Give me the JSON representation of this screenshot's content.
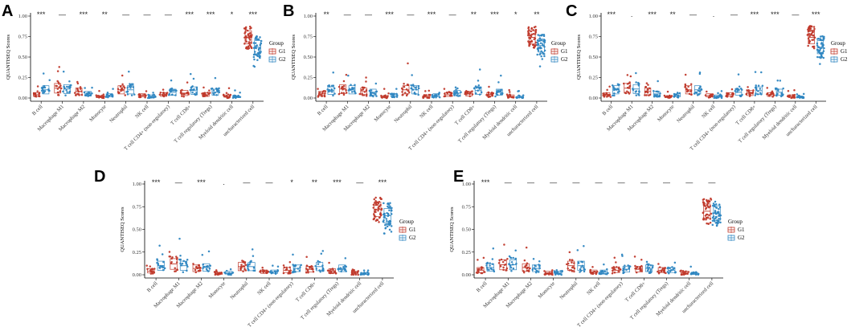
{
  "colors": {
    "G1": "#C0392B",
    "G2": "#2E86C1"
  },
  "chart_data": [
    {
      "panel": "A",
      "type": "scatter",
      "ylabel": "QUANTISEQ Scores",
      "ylim": [
        0,
        1
      ],
      "yticks": [
        "0.00",
        "0.25",
        "0.50",
        "0.75",
        "1.00"
      ],
      "categories": [
        "B cell",
        "Macrophage M1",
        "Macrophage M2",
        "Monocyte",
        "Neutrophil",
        "NK cell",
        "T cell CD4+ (non-regulatory)",
        "T cell CD8+",
        "T cell regulatory (Tregs)",
        "Myeloid dendritic cell",
        "uncharacterized cell"
      ],
      "significance": [
        "***",
        "—",
        "***",
        "**",
        "—",
        "—",
        "—",
        "***",
        "***",
        "*",
        "***"
      ],
      "series": [
        {
          "name": "G1",
          "medians": [
            0.04,
            0.12,
            0.08,
            0.01,
            0.1,
            0.03,
            0.04,
            0.06,
            0.04,
            0.02,
            0.74
          ]
        },
        {
          "name": "G2",
          "medians": [
            0.1,
            0.11,
            0.05,
            0.03,
            0.1,
            0.02,
            0.07,
            0.09,
            0.07,
            0.01,
            0.62
          ]
        }
      ],
      "legend": {
        "title": "Group",
        "entries": [
          "G1",
          "G2"
        ]
      }
    },
    {
      "panel": "B",
      "type": "scatter",
      "ylabel": "QUANTISEQ Scores",
      "ylim": [
        0,
        1
      ],
      "yticks": [
        "0.00",
        "0.25",
        "0.50",
        "0.75",
        "1.00"
      ],
      "categories": [
        "B cell",
        "Macrophage M1",
        "Macrophage M2",
        "Monocyte",
        "Neutrophil",
        "NK cell",
        "T cell CD4+ (non-regulatory)",
        "T cell CD8+",
        "T cell regulatory (Tregs)",
        "Myeloid dendritic cell",
        "uncharacterized cell"
      ],
      "significance": [
        "**",
        "—",
        "—",
        "***",
        "—",
        "***",
        "—",
        "**",
        "***",
        "*",
        "**"
      ],
      "series": [
        {
          "name": "G1",
          "medians": [
            0.05,
            0.11,
            0.08,
            0.01,
            0.1,
            0.02,
            0.04,
            0.05,
            0.04,
            0.02,
            0.74
          ]
        },
        {
          "name": "G2",
          "medians": [
            0.09,
            0.1,
            0.07,
            0.03,
            0.1,
            0.03,
            0.06,
            0.09,
            0.07,
            0.01,
            0.64
          ]
        }
      ],
      "legend": {
        "title": "Group",
        "entries": [
          "G1",
          "G2"
        ]
      }
    },
    {
      "panel": "C",
      "type": "scatter",
      "ylabel": "QUANTISEQ Scores",
      "ylim": [
        0,
        1
      ],
      "yticks": [
        "0.00",
        "0.25",
        "0.50",
        "0.75",
        "1.00"
      ],
      "categories": [
        "B cell",
        "Macrophage M1",
        "Macrophage M2",
        "Monocyte",
        "Neutrophil",
        "NK cell",
        "T cell CD4+ (non-regulatory)",
        "T cell CD8+",
        "T cell regulatory (Tregs)",
        "Myeloid dendritic cell",
        "uncharacterized cell"
      ],
      "significance": [
        "***",
        ".",
        "***",
        "**",
        "—",
        ".",
        "—",
        "***",
        "***",
        "—",
        "***"
      ],
      "series": [
        {
          "name": "G1",
          "medians": [
            0.04,
            0.12,
            0.08,
            0.01,
            0.1,
            0.03,
            0.04,
            0.06,
            0.04,
            0.02,
            0.74
          ]
        },
        {
          "name": "G2",
          "medians": [
            0.1,
            0.11,
            0.05,
            0.03,
            0.1,
            0.02,
            0.07,
            0.09,
            0.07,
            0.01,
            0.62
          ]
        }
      ],
      "legend": {
        "title": "Group",
        "entries": [
          "G1",
          "G2"
        ]
      }
    },
    {
      "panel": "D",
      "type": "scatter",
      "ylabel": "QUANTISEQ Scores",
      "ylim": [
        0,
        1
      ],
      "yticks": [
        "0.00",
        "0.25",
        "0.50",
        "0.75",
        "1.00"
      ],
      "categories": [
        "B cell",
        "Macrophage M1",
        "Macrophage M2",
        "Monocyte",
        "Neutrophil",
        "NK cell",
        "T cell CD4+ (non-regulatory)",
        "T cell CD8+",
        "T cell regulatory (Tregs)",
        "Myeloid dendritic cell",
        "uncharacterized cell"
      ],
      "significance": [
        "***",
        "—",
        "***",
        ".",
        "—",
        "—",
        "*",
        "**",
        "***",
        "—",
        "***"
      ],
      "series": [
        {
          "name": "G1",
          "medians": [
            0.04,
            0.12,
            0.07,
            0.01,
            0.09,
            0.03,
            0.05,
            0.06,
            0.04,
            0.02,
            0.72
          ]
        },
        {
          "name": "G2",
          "medians": [
            0.1,
            0.1,
            0.08,
            0.02,
            0.09,
            0.03,
            0.07,
            0.09,
            0.07,
            0.01,
            0.65
          ]
        }
      ],
      "legend": {
        "title": "Group",
        "entries": [
          "G1",
          "G2"
        ]
      }
    },
    {
      "panel": "E",
      "type": "scatter",
      "ylabel": "QUANTISEQ Scores",
      "ylim": [
        0,
        1
      ],
      "yticks": [
        "0.00",
        "0.25",
        "0.50",
        "0.75",
        "1.00"
      ],
      "categories": [
        "B cell",
        "Macrophage M1",
        "Macrophage M2",
        "Monocyte",
        "Neutrophil",
        "NK cell",
        "T cell CD4+ (non-regulatory)",
        "T cell CD8+",
        "T cell regulatory (Tregs)",
        "Myeloid dendritic cell",
        "uncharacterized cell"
      ],
      "significance": [
        "***",
        "—",
        "—",
        "—",
        "—",
        "—",
        "—",
        "—",
        "—",
        "—",
        "—"
      ],
      "series": [
        {
          "name": "G1",
          "medians": [
            0.05,
            0.11,
            0.08,
            0.02,
            0.1,
            0.03,
            0.05,
            0.06,
            0.05,
            0.02,
            0.7
          ]
        },
        {
          "name": "G2",
          "medians": [
            0.08,
            0.11,
            0.07,
            0.02,
            0.1,
            0.03,
            0.06,
            0.07,
            0.05,
            0.01,
            0.68
          ]
        }
      ],
      "legend": {
        "title": "Group",
        "entries": [
          "G1",
          "G2"
        ]
      }
    }
  ]
}
